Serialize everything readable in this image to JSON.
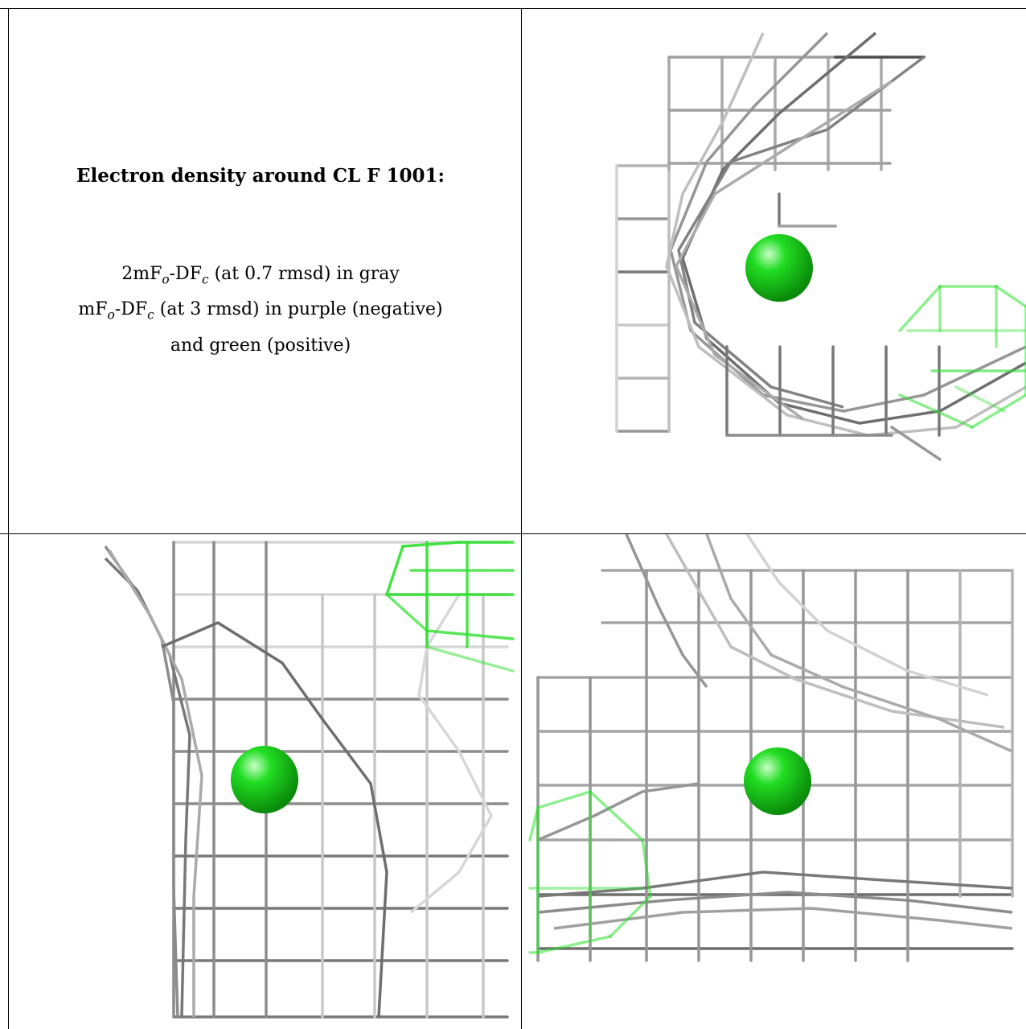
{
  "caption": {
    "title": "Electron density around CL F 1001:",
    "line1": "2mFo-DFc (at 0.7 rmsd) in gray",
    "line2": "mFo-DFc (at 3 rmsd) in purple (negative)",
    "line3": "and green (positive)"
  },
  "colors": {
    "density_2fofc": "#8a8a8a",
    "density_positive": "#2fe02f",
    "density_negative": "#a040c0",
    "atom_cl": "#22dd22"
  },
  "views": [
    {
      "id": "view-1",
      "atom": "CL"
    },
    {
      "id": "view-2",
      "atom": "CL"
    },
    {
      "id": "view-3",
      "atom": "CL"
    }
  ]
}
